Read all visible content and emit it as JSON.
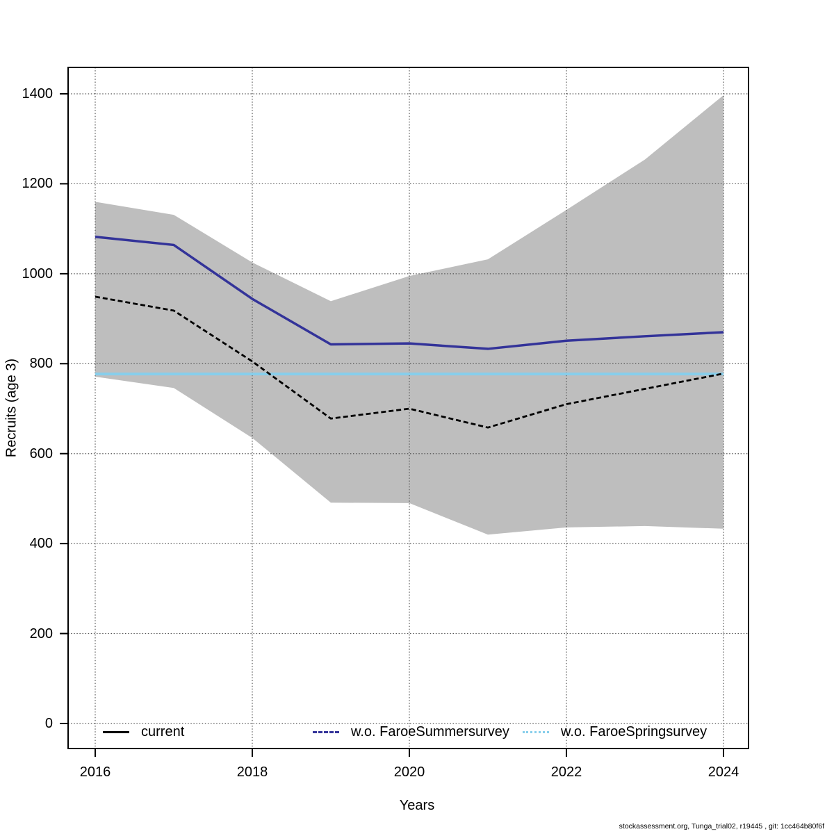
{
  "page": {
    "background": "#ffffff"
  },
  "footer": {
    "text": "stockassessment.org, Tunga_trial02, r19445 , git: 1cc464b80f6f"
  },
  "chart_data": {
    "type": "line",
    "title": "",
    "xlabel": "Years",
    "ylabel": "Recruits (age 3)",
    "x": [
      2016,
      2017,
      2018,
      2019,
      2020,
      2021,
      2022,
      2023,
      2024
    ],
    "xticks": [
      2016,
      2018,
      2020,
      2022,
      2024
    ],
    "yticks": [
      0,
      200,
      400,
      600,
      800,
      1000,
      1200,
      1400
    ],
    "xlim": [
      2015.65,
      2024.32
    ],
    "ylim": [
      -56,
      1459
    ],
    "grid": "dotted",
    "grid_color": "#555555",
    "legend_position": "bottom-horizontal-inside",
    "series": [
      {
        "name": "current",
        "color": "#000000",
        "plot_style": "dashed",
        "legend_style": "solid",
        "values": [
          949,
          918,
          805,
          678,
          700,
          658,
          710,
          744,
          778
        ]
      },
      {
        "name": "w.o. FaroeSummersurvey",
        "color": "#333399",
        "plot_style": "solid",
        "legend_style": "dashed",
        "values": [
          1082,
          1064,
          944,
          843,
          845,
          833,
          851,
          861,
          870
        ]
      },
      {
        "name": "w.o. FaroeSpringsurvey",
        "color": "#87ceeb",
        "plot_style": "solid",
        "legend_style": "dotted",
        "values": [
          777,
          777,
          777,
          777,
          777,
          777,
          777,
          777,
          777
        ]
      }
    ],
    "band": {
      "applies_to": "current",
      "color": "#bebebe",
      "upper": [
        1160,
        1131,
        1025,
        939,
        995,
        1032,
        1142,
        1254,
        1397
      ],
      "lower": [
        771,
        746,
        635,
        491,
        490,
        420,
        436,
        439,
        433
      ]
    }
  }
}
